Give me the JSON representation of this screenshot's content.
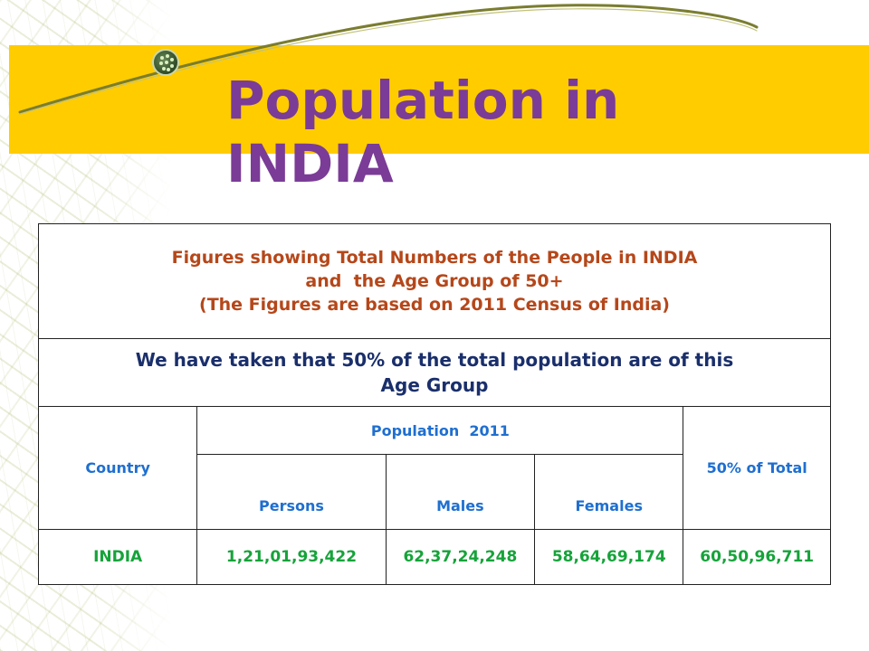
{
  "slide": {
    "title": "Population in INDIA",
    "colors": {
      "title": "#7a3c96",
      "band": "#ffcc00",
      "caption": "#b5471a",
      "note": "#1a2f6b",
      "header": "#1f6fd0",
      "data": "#16a33a"
    }
  },
  "table": {
    "caption_lines": [
      "Figures showing Total Numbers of the People in INDIA",
      "and  the Age Group of 50+",
      "(The Figures are based on 2011 Census of India)"
    ],
    "note_lines": [
      "We have taken that 50% of the total population are of this",
      "Age Group"
    ],
    "headers": {
      "country": "Country",
      "population_group": "Population  2011",
      "persons": "Persons",
      "males": "Males",
      "females": "Females",
      "fifty_pct": "50% of Total"
    },
    "row": {
      "country": "INDIA",
      "persons": "1,21,01,93,422",
      "males": "62,37,24,248",
      "females": "58,64,69,174",
      "fifty_pct": "60,50,96,711"
    }
  }
}
